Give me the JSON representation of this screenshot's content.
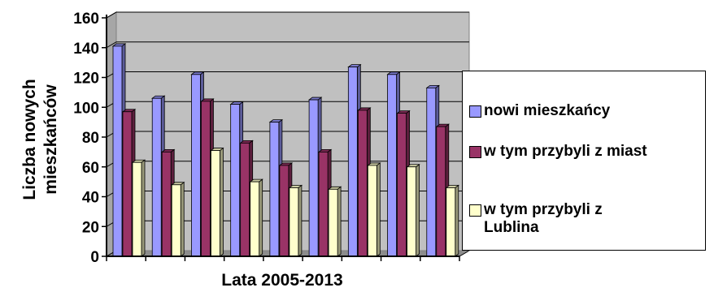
{
  "chart_data": {
    "type": "bar",
    "title": "",
    "xlabel": "Lata 2005-2013",
    "ylabel": "Liczba nowych mieszkańców",
    "ylim": [
      0,
      160
    ],
    "yticks": [
      "0",
      "20",
      "40",
      "60",
      "80",
      "100",
      "120",
      "140",
      "160"
    ],
    "grid": true,
    "legend_position": "right",
    "background_color": "#c0c0c0",
    "categories": [
      "",
      "",
      "",
      "",
      "",
      "",
      "",
      "",
      ""
    ],
    "series": [
      {
        "name": "nowi mieszkańcy",
        "color": "#9999ff",
        "values": [
          141,
          106,
          122,
          102,
          90,
          105,
          127,
          122,
          113
        ]
      },
      {
        "name": "w tym przybyli z miast",
        "color": "#993366",
        "values": [
          97,
          70,
          104,
          76,
          61,
          70,
          98,
          96,
          87
        ]
      },
      {
        "name": "w tym przybyli z Lublina",
        "color": "#ffffcc",
        "values": [
          63,
          48,
          71,
          50,
          46,
          45,
          61,
          60,
          46
        ]
      }
    ]
  }
}
